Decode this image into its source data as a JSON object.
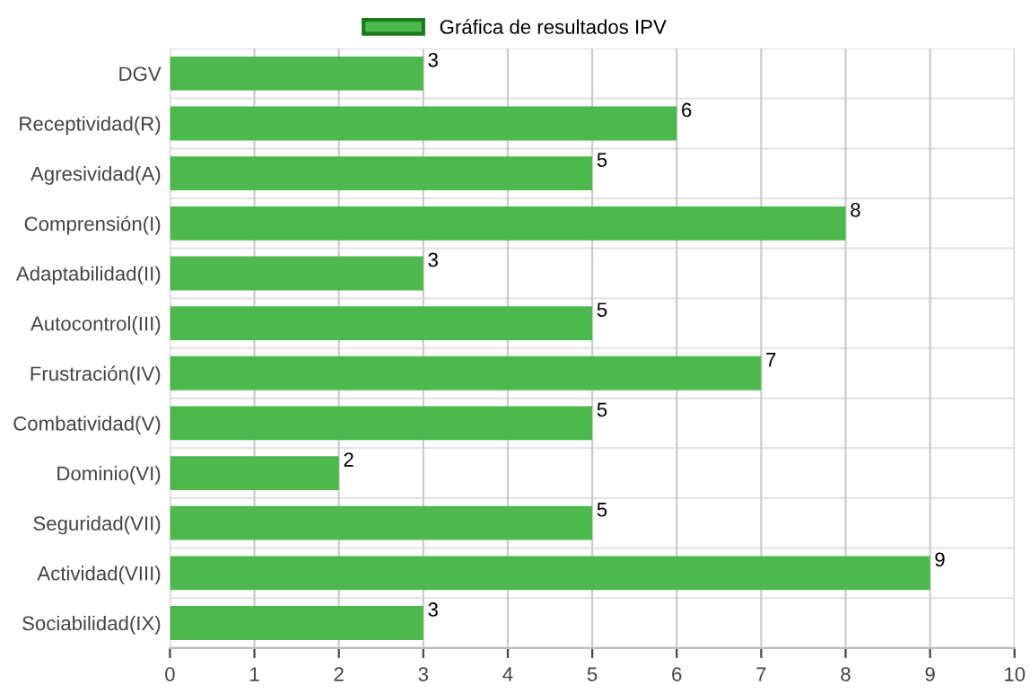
{
  "chart_data": {
    "type": "bar",
    "orientation": "horizontal",
    "categories": [
      "DGV",
      "Receptividad(R)",
      "Agresividad(A)",
      "Comprensión(I)",
      "Adaptabilidad(II)",
      "Autocontrol(III)",
      "Frustración(IV)",
      "Combatividad(V)",
      "Dominio(VI)",
      "Seguridad(VII)",
      "Actividad(VIII)",
      "Sociabilidad(IX)"
    ],
    "series": [
      {
        "name": "Gráfica de resultados IPV",
        "color": "#4db84d",
        "values": [
          3,
          6,
          5,
          8,
          3,
          5,
          7,
          5,
          2,
          5,
          9,
          3
        ]
      }
    ],
    "xlim": [
      0,
      10
    ],
    "xticks": [
      0,
      1,
      2,
      3,
      4,
      5,
      6,
      7,
      8,
      9,
      10
    ],
    "grid": "x",
    "legend": "top",
    "data_labels": true
  }
}
